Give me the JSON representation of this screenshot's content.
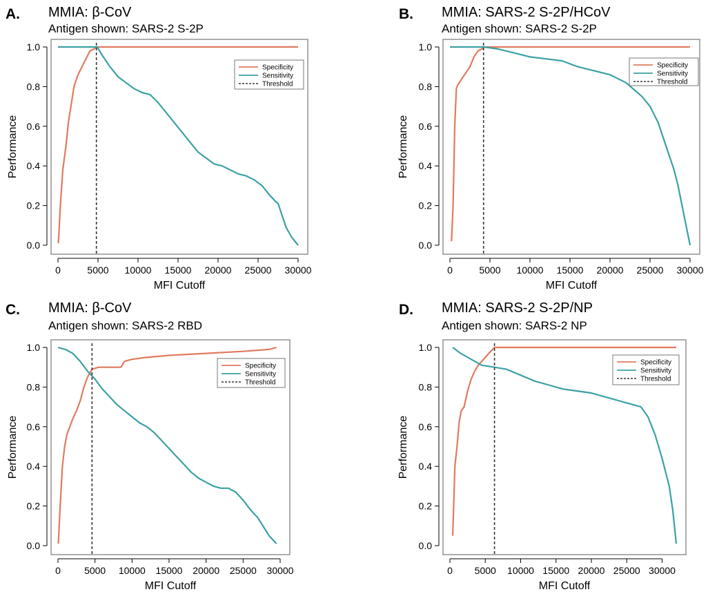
{
  "chart_data": [
    {
      "type": "line",
      "panel_letter": "A.",
      "title": "MMIA: β-CoV",
      "subtitle": "Antigen shown: SARS-2 S-2P",
      "xlabel": "MFI Cutoff",
      "ylabel": "Performance",
      "xlim": [
        0,
        30000
      ],
      "ylim": [
        0,
        1
      ],
      "xticks": [
        0,
        5000,
        10000,
        15000,
        20000,
        25000,
        30000
      ],
      "yticks": [
        0.0,
        0.2,
        0.4,
        0.6,
        0.8,
        1.0
      ],
      "xtick_labels": [
        "0",
        "5000",
        "10000",
        "15000",
        "20000",
        "25000",
        "30000"
      ],
      "ytick_labels": [
        "0.0",
        "0.2",
        "0.4",
        "0.6",
        "0.8",
        "1.0"
      ],
      "legend_position": "top-right",
      "legend": [
        "Specificity",
        "Sensitivity",
        "Threshold"
      ],
      "threshold": 4800,
      "series": [
        {
          "name": "Specificity",
          "color": "#e07a5f",
          "x": [
            50,
            300,
            600,
            1000,
            1300,
            1700,
            2000,
            2500,
            3000,
            3500,
            4000,
            4500,
            4900,
            6000,
            10000,
            15000,
            20000,
            25000,
            30000
          ],
          "y": [
            0.01,
            0.2,
            0.38,
            0.5,
            0.62,
            0.72,
            0.8,
            0.86,
            0.9,
            0.94,
            0.98,
            0.99,
            1.0,
            1.0,
            1.0,
            1.0,
            1.0,
            1.0,
            1.0
          ]
        },
        {
          "name": "Sensitivity",
          "color": "#3aa0a3",
          "x": [
            0,
            3000,
            4900,
            5500,
            6500,
            7500,
            8500,
            9500,
            10500,
            11500,
            12500,
            13500,
            14500,
            15500,
            16500,
            17500,
            18500,
            19500,
            20500,
            21500,
            22500,
            23500,
            24500,
            25500,
            26500,
            27200,
            27500,
            28000,
            28500,
            29200,
            30000
          ],
          "y": [
            1.0,
            1.0,
            1.0,
            0.96,
            0.9,
            0.85,
            0.82,
            0.79,
            0.77,
            0.76,
            0.72,
            0.67,
            0.62,
            0.57,
            0.52,
            0.47,
            0.44,
            0.41,
            0.4,
            0.38,
            0.36,
            0.35,
            0.33,
            0.3,
            0.25,
            0.22,
            0.21,
            0.15,
            0.09,
            0.04,
            0.0
          ]
        }
      ]
    },
    {
      "type": "line",
      "panel_letter": "B.",
      "title": "MMIA: SARS-2 S-2P/HCoV",
      "subtitle": "Antigen shown: SARS-2 S-2P",
      "xlabel": "MFI Cutoff",
      "ylabel": "Performance",
      "xlim": [
        0,
        30000
      ],
      "ylim": [
        0,
        1
      ],
      "xticks": [
        0,
        5000,
        10000,
        15000,
        20000,
        25000,
        30000
      ],
      "yticks": [
        0.0,
        0.2,
        0.4,
        0.6,
        0.8,
        1.0
      ],
      "xtick_labels": [
        "0",
        "5000",
        "10000",
        "15000",
        "20000",
        "25000",
        "30000"
      ],
      "ytick_labels": [
        "0.0",
        "0.2",
        "0.4",
        "0.6",
        "0.8",
        "1.0"
      ],
      "legend_position": "top-right",
      "legend": [
        "Specificity",
        "Sensitivity",
        "Threshold"
      ],
      "threshold": 4200,
      "series": [
        {
          "name": "Specificity",
          "color": "#e07a5f",
          "x": [
            200,
            400,
            600,
            800,
            1000,
            1500,
            2000,
            2500,
            3000,
            3500,
            4000,
            4200,
            5000,
            10000,
            15000,
            20000,
            25000,
            30000
          ],
          "y": [
            0.02,
            0.2,
            0.6,
            0.79,
            0.81,
            0.84,
            0.87,
            0.9,
            0.95,
            0.98,
            0.99,
            1.0,
            1.0,
            1.0,
            1.0,
            1.0,
            1.0,
            1.0
          ],
          "note": ""
        },
        {
          "name": "Sensitivity",
          "color": "#3aa0a3",
          "x": [
            0,
            4200,
            6000,
            8000,
            10000,
            12000,
            14000,
            16000,
            18000,
            20000,
            22000,
            24000,
            25000,
            26000,
            27000,
            28000,
            28500,
            29000,
            29500,
            30000
          ],
          "y": [
            1.0,
            1.0,
            0.99,
            0.97,
            0.95,
            0.94,
            0.93,
            0.9,
            0.88,
            0.86,
            0.82,
            0.75,
            0.7,
            0.62,
            0.5,
            0.38,
            0.3,
            0.2,
            0.1,
            0.0
          ]
        }
      ]
    },
    {
      "type": "line",
      "panel_letter": "C.",
      "title": "MMIA: β-CoV",
      "subtitle": "Antigen shown: SARS-2 RBD",
      "xlabel": "MFI Cutoff",
      "ylabel": "Performance",
      "xlim": [
        0,
        30000
      ],
      "ylim": [
        0,
        1
      ],
      "xticks": [
        0,
        5000,
        10000,
        15000,
        20000,
        25000,
        30000
      ],
      "yticks": [
        0.0,
        0.2,
        0.4,
        0.6,
        0.8,
        1.0
      ],
      "xtick_labels": [
        "0",
        "5000",
        "10000",
        "15000",
        "20000",
        "25000",
        "30000"
      ],
      "ytick_labels": [
        "0.0",
        "0.2",
        "0.4",
        "0.6",
        "0.8",
        "1.0"
      ],
      "legend_position": "top-right",
      "legend": [
        "Specificity",
        "Sensitivity",
        "Threshold"
      ],
      "threshold": 4600,
      "series": [
        {
          "name": "Specificity",
          "color": "#e07a5f",
          "x": [
            50,
            300,
            600,
            900,
            1200,
            1600,
            2000,
            2500,
            3000,
            3500,
            4000,
            4600,
            5500,
            7000,
            8500,
            9000,
            10000,
            12000,
            15000,
            20000,
            25000,
            28500,
            29500
          ],
          "y": [
            0.01,
            0.2,
            0.4,
            0.5,
            0.56,
            0.6,
            0.64,
            0.68,
            0.73,
            0.8,
            0.85,
            0.89,
            0.9,
            0.9,
            0.9,
            0.93,
            0.94,
            0.95,
            0.96,
            0.97,
            0.98,
            0.99,
            1.0
          ]
        },
        {
          "name": "Sensitivity",
          "color": "#3aa0a3",
          "x": [
            0,
            1000,
            2000,
            3000,
            4000,
            5000,
            6000,
            7000,
            8000,
            9000,
            10000,
            11000,
            12000,
            13000,
            14000,
            15000,
            16000,
            17000,
            18000,
            19000,
            20000,
            21000,
            22000,
            23000,
            24000,
            25000,
            26000,
            27000,
            28000,
            28500,
            29000,
            29500
          ],
          "y": [
            1.0,
            0.99,
            0.97,
            0.93,
            0.88,
            0.84,
            0.79,
            0.75,
            0.71,
            0.68,
            0.65,
            0.62,
            0.6,
            0.57,
            0.53,
            0.49,
            0.45,
            0.41,
            0.37,
            0.34,
            0.32,
            0.3,
            0.29,
            0.29,
            0.27,
            0.23,
            0.18,
            0.14,
            0.08,
            0.05,
            0.03,
            0.01
          ]
        }
      ]
    },
    {
      "type": "line",
      "panel_letter": "D.",
      "title": "MMIA: SARS-2 S-2P/NP",
      "subtitle": "Antigen shown: SARS-2 NP",
      "xlabel": "MFI Cutoff",
      "ylabel": "Performance",
      "xlim": [
        0,
        32000
      ],
      "ylim": [
        0,
        1
      ],
      "xticks": [
        0,
        5000,
        10000,
        15000,
        20000,
        25000,
        30000
      ],
      "yticks": [
        0.0,
        0.2,
        0.4,
        0.6,
        0.8,
        1.0
      ],
      "xtick_labels": [
        "0",
        "5000",
        "10000",
        "15000",
        "20000",
        "25000",
        "30000"
      ],
      "ytick_labels": [
        "0.0",
        "0.2",
        "0.4",
        "0.6",
        "0.8",
        "1.0"
      ],
      "legend_position": "top-right",
      "legend": [
        "Specificity",
        "Sensitivity",
        "Threshold"
      ],
      "threshold": 6300,
      "series": [
        {
          "name": "Specificity",
          "color": "#e07a5f",
          "x": [
            400,
            700,
            1000,
            1300,
            1600,
            2000,
            2500,
            3000,
            3500,
            4000,
            4500,
            5000,
            5500,
            6300,
            7000,
            10000,
            15000,
            20000,
            25000,
            32000
          ],
          "y": [
            0.05,
            0.4,
            0.5,
            0.62,
            0.68,
            0.7,
            0.78,
            0.84,
            0.88,
            0.91,
            0.93,
            0.95,
            0.97,
            1.0,
            1.0,
            1.0,
            1.0,
            1.0,
            1.0,
            1.0
          ]
        },
        {
          "name": "Sensitivity",
          "color": "#3aa0a3",
          "x": [
            400,
            1500,
            3000,
            4500,
            6300,
            8000,
            10000,
            12000,
            14000,
            16000,
            18000,
            20000,
            22000,
            24000,
            25000,
            26000,
            27000,
            28000,
            29000,
            30000,
            31000,
            31500,
            32000
          ],
          "y": [
            1.0,
            0.97,
            0.94,
            0.91,
            0.9,
            0.89,
            0.86,
            0.83,
            0.81,
            0.79,
            0.78,
            0.77,
            0.75,
            0.73,
            0.72,
            0.71,
            0.7,
            0.65,
            0.56,
            0.44,
            0.3,
            0.18,
            0.01
          ]
        }
      ]
    }
  ]
}
